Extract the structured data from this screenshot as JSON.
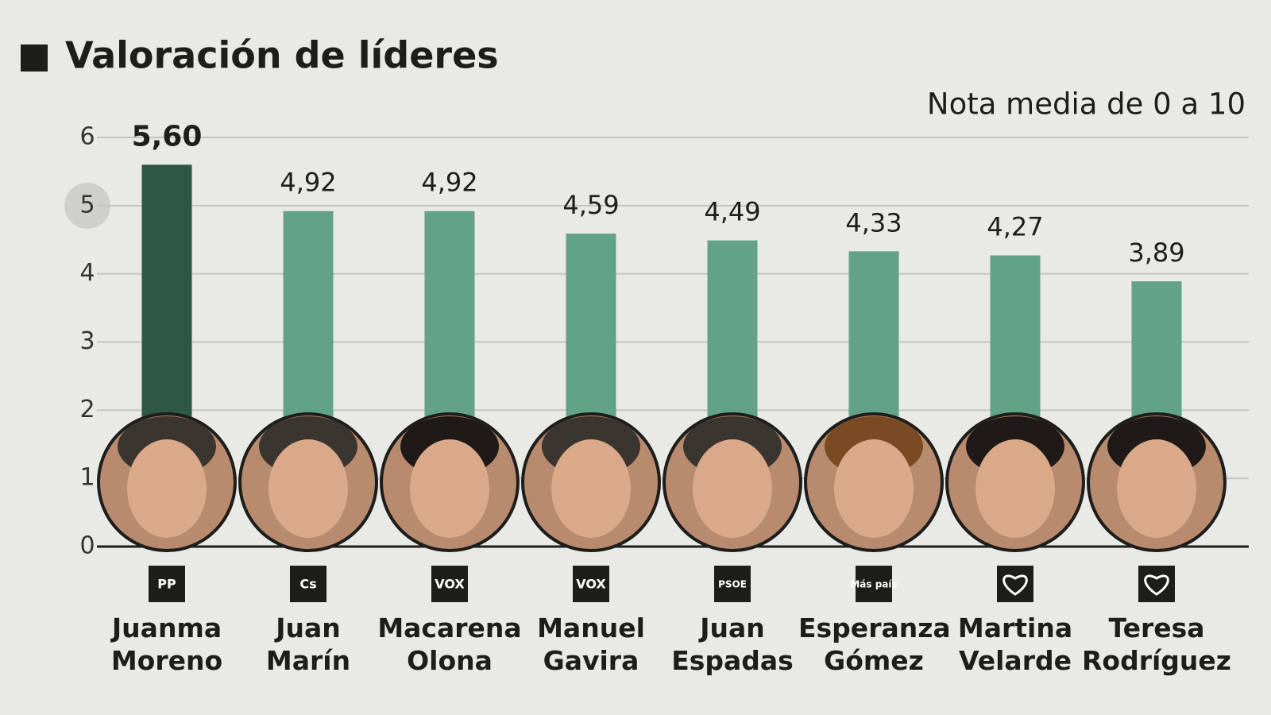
{
  "chart_data": {
    "type": "bar",
    "title": "Valoración de líderes",
    "subtitle": "Nota media de 0 a 10",
    "categories": [
      "Juanma Moreno",
      "Juan Marín",
      "Macarena Olona",
      "Manuel Gavira",
      "Juan Espadas",
      "Esperanza Gómez",
      "Martina Velarde",
      "Teresa Rodríguez"
    ],
    "parties": [
      "PP",
      "Cs",
      "VOX",
      "VOX",
      "PSOE",
      "Más país",
      null,
      null
    ],
    "values": [
      5.6,
      4.92,
      4.92,
      4.59,
      4.49,
      4.33,
      4.27,
      3.89
    ],
    "value_labels": [
      "5,60",
      "4,92",
      "4,92",
      "4,59",
      "4,49",
      "4,33",
      "4,27",
      "3,89"
    ],
    "colors": [
      "#2e5747",
      "#62a287",
      "#62a287",
      "#62a287",
      "#62a287",
      "#62a287",
      "#62a287",
      "#62a287"
    ],
    "ylim": [
      0,
      6
    ],
    "yticks": [
      0,
      1,
      2,
      3,
      4,
      5,
      6
    ],
    "grid": true
  }
}
